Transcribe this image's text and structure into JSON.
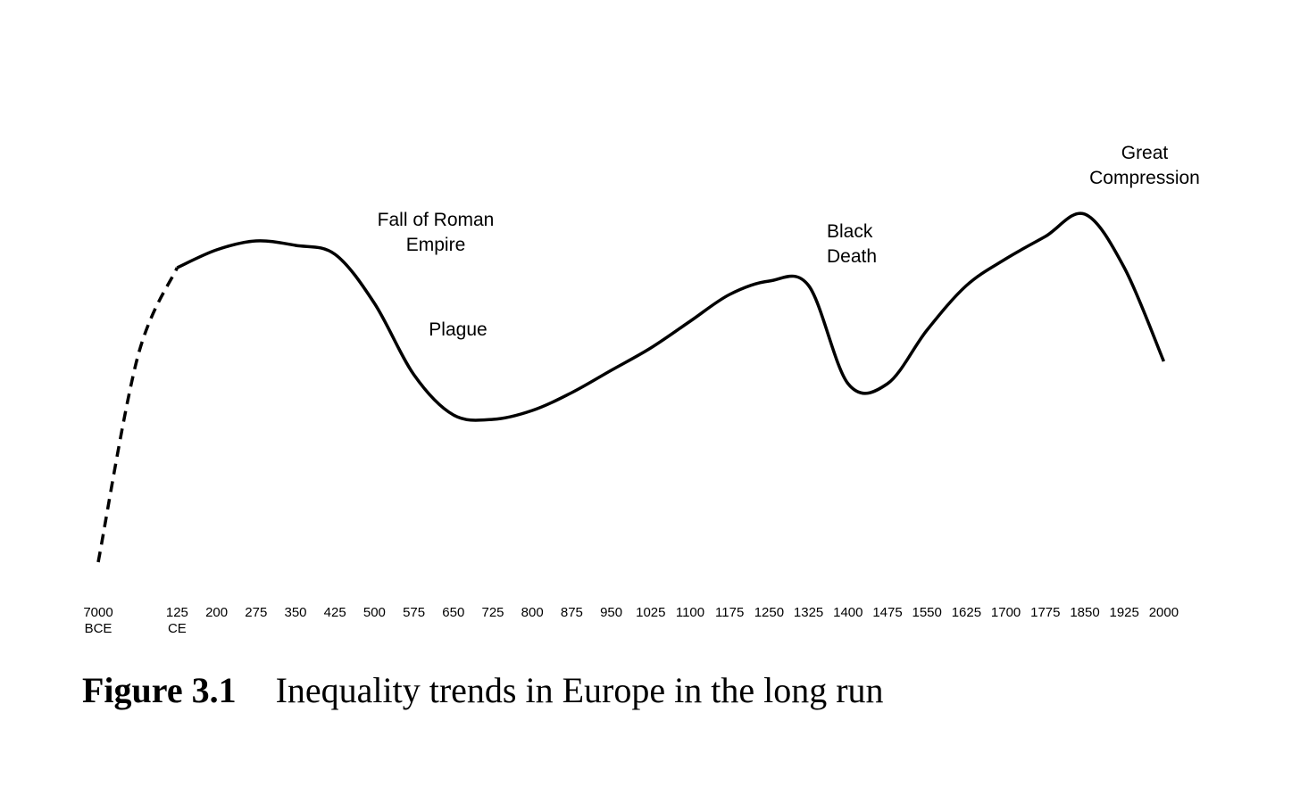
{
  "chart_data": {
    "type": "line",
    "categories": [
      "7000 BCE",
      null,
      "125 CE",
      "200",
      "275",
      "350",
      "425",
      "500",
      "575",
      "650",
      "725",
      "800",
      "875",
      "950",
      "1025",
      "1100",
      "1175",
      "1250",
      "1325",
      "1400",
      "1475",
      "1550",
      "1625",
      "1700",
      "1775",
      "1850",
      "1925",
      "2000"
    ],
    "series": [
      {
        "color": "#000000",
        "dashed": true,
        "values": [
          4,
          50,
          70,
          null,
          null,
          null,
          null,
          null,
          null,
          null,
          null,
          null,
          null,
          null,
          null,
          null,
          null,
          null,
          null,
          null,
          null,
          null,
          null,
          null,
          null,
          null,
          null,
          null
        ]
      },
      {
        "color": "#000000",
        "dashed": false,
        "values": [
          null,
          null,
          70,
          74,
          76,
          75,
          73,
          62,
          46,
          37,
          36,
          38,
          42,
          47,
          52,
          58,
          64,
          67,
          66,
          44,
          44,
          56,
          66,
          72,
          77,
          82,
          70,
          49
        ]
      }
    ],
    "ylim": [
      0,
      100
    ],
    "annotations": [
      "Fall of Roman Empire",
      "Plague",
      "Black Death",
      "Great Compression"
    ],
    "figure_label": "Figure 3.1",
    "title": "Inequality trends in Europe in the long run"
  }
}
